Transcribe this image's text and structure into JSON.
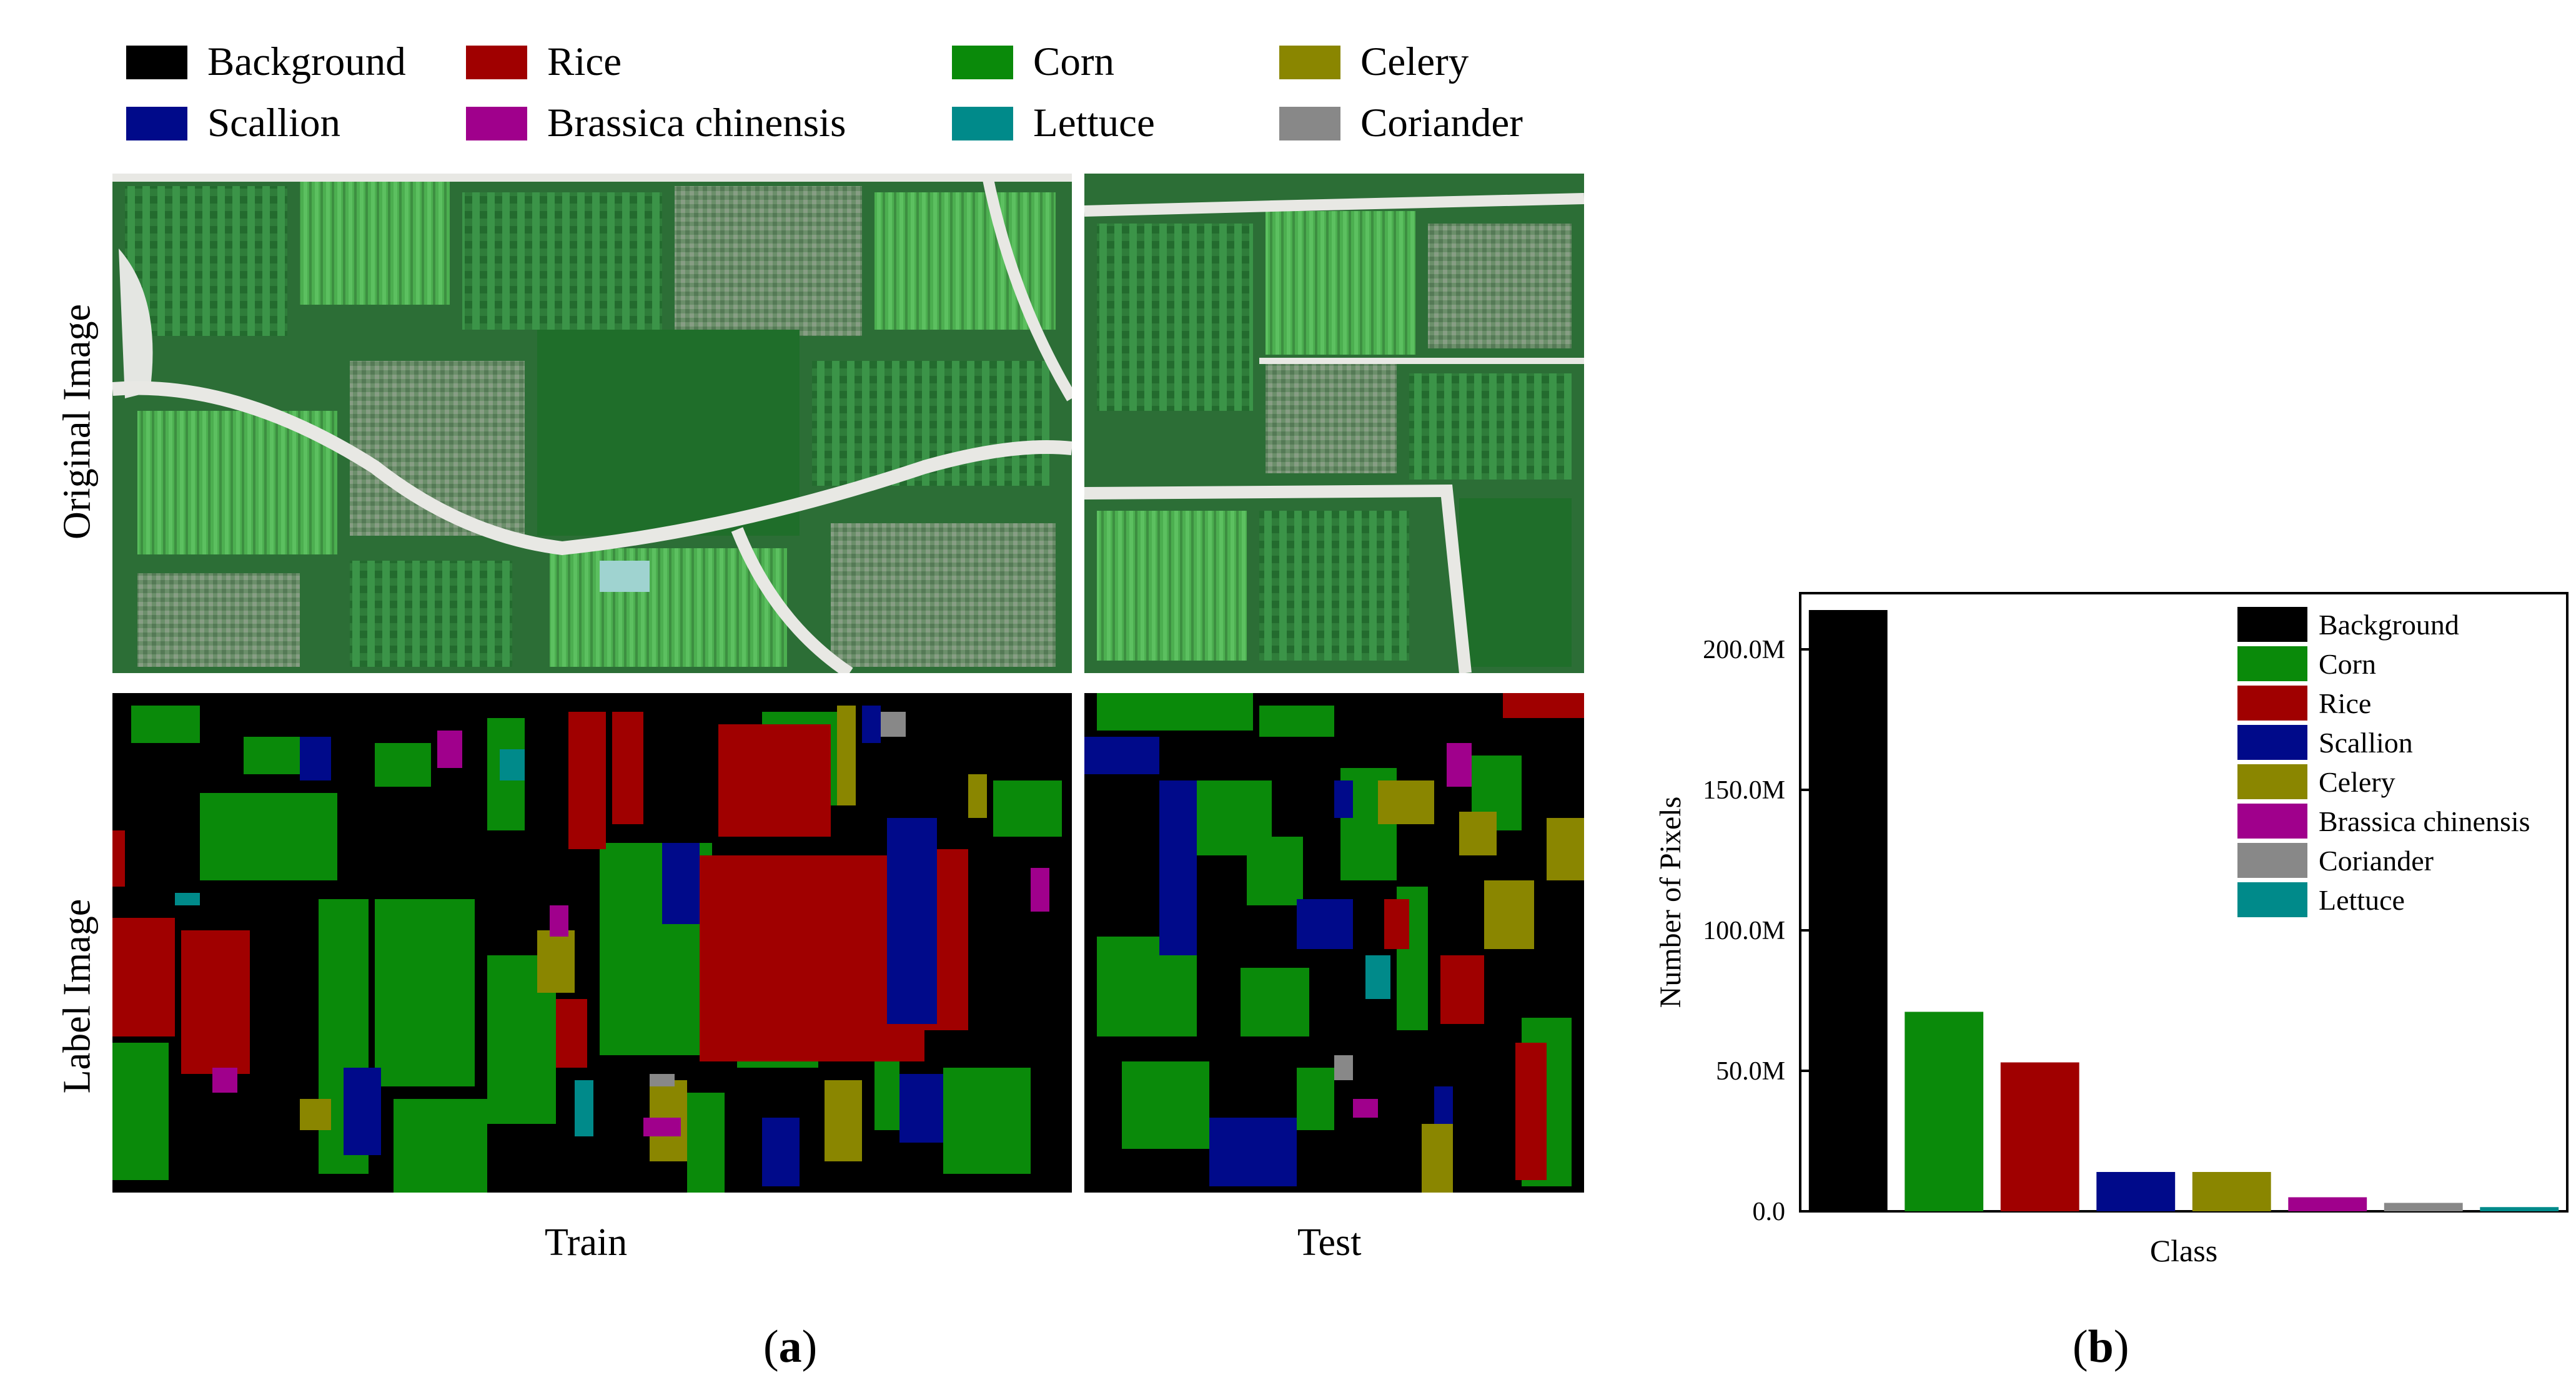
{
  "panel_a": {
    "legend": [
      {
        "label": "Background",
        "color": "#000000"
      },
      {
        "label": "Rice",
        "color": "#a00000"
      },
      {
        "label": "Corn",
        "color": "#0a8a0a"
      },
      {
        "label": "Celery",
        "color": "#8a8600"
      },
      {
        "label": "Scallion",
        "color": "#000a8a"
      },
      {
        "label": "Brassica chinensis",
        "color": "#a0008c"
      },
      {
        "label": "Lettuce",
        "color": "#008a8a"
      },
      {
        "label": "Coriander",
        "color": "#888888"
      }
    ],
    "row_labels": {
      "original": "Original Image",
      "label": "Label Image"
    },
    "split_labels": {
      "train": "Train",
      "test": "Test"
    },
    "caption_letter": "a"
  },
  "panel_b": {
    "caption_letter": "b"
  },
  "chart_data": {
    "type": "bar",
    "categories": [
      "Background",
      "Corn",
      "Rice",
      "Scallion",
      "Celery",
      "Brassica chinensis",
      "Coriander",
      "Lettuce"
    ],
    "values": [
      214000000,
      71000000,
      53000000,
      14000000,
      14000000,
      5000000,
      3000000,
      1500000
    ],
    "colors": [
      "#000000",
      "#0a8a0a",
      "#a00000",
      "#000a8a",
      "#8a8600",
      "#a0008c",
      "#888888",
      "#008a8a"
    ],
    "ylim": [
      0,
      220000000
    ],
    "yticks": [
      0,
      50000000,
      100000000,
      150000000,
      200000000
    ],
    "ytick_labels": [
      "0.0",
      "50.0M",
      "100.0M",
      "150.0M",
      "200.0M"
    ],
    "xlabel": "Class",
    "ylabel": "Number of Pixels",
    "legend_position": "top-right",
    "legend": [
      {
        "label": "Background",
        "color": "#000000"
      },
      {
        "label": "Corn",
        "color": "#0a8a0a"
      },
      {
        "label": "Rice",
        "color": "#a00000"
      },
      {
        "label": "Scallion",
        "color": "#000a8a"
      },
      {
        "label": "Celery",
        "color": "#8a8600"
      },
      {
        "label": "Brassica chinensis",
        "color": "#a0008c"
      },
      {
        "label": "Coriander",
        "color": "#888888"
      },
      {
        "label": "Lettuce",
        "color": "#008a8a"
      }
    ]
  }
}
